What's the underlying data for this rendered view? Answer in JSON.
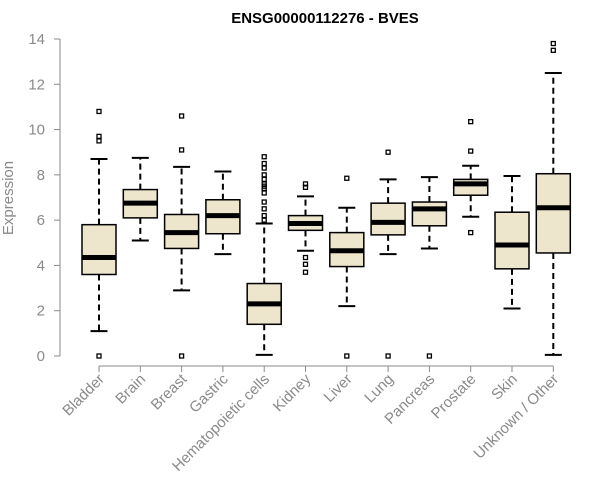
{
  "chart_data": {
    "type": "boxplot",
    "title": "ENSG00000112276 - BVES",
    "ylabel": "Expression",
    "xlabel": "",
    "ylim": [
      0,
      14
    ],
    "yticks": [
      0,
      2,
      4,
      6,
      8,
      10,
      12,
      14
    ],
    "grid": false,
    "box_fill": "#ede6cc",
    "categories": [
      "Bladder",
      "Brain",
      "Breast",
      "Gastric",
      "Hematopoietic cells",
      "Kidney",
      "Liver",
      "Lung",
      "Pancreas",
      "Prostate",
      "Skin",
      "Unknown / Other"
    ],
    "boxes": [
      {
        "whisker_low": 1.1,
        "q1": 3.6,
        "median": 4.35,
        "q3": 5.8,
        "whisker_high": 8.7,
        "outliers": [
          0,
          9.5,
          9.7,
          10.8
        ]
      },
      {
        "whisker_low": 5.1,
        "q1": 6.1,
        "median": 6.75,
        "q3": 7.35,
        "whisker_high": 8.75,
        "outliers": []
      },
      {
        "whisker_low": 2.9,
        "q1": 4.75,
        "median": 5.45,
        "q3": 6.25,
        "whisker_high": 8.35,
        "outliers": [
          0,
          9.1,
          10.6
        ]
      },
      {
        "whisker_low": 4.5,
        "q1": 5.4,
        "median": 6.2,
        "q3": 6.9,
        "whisker_high": 8.15,
        "outliers": []
      },
      {
        "whisker_low": 0.05,
        "q1": 1.4,
        "median": 2.3,
        "q3": 3.2,
        "whisker_high": 5.85,
        "outliers": [
          6.0,
          6.2,
          6.5,
          6.8,
          7.2,
          7.4,
          7.5,
          7.6,
          7.8,
          8.0,
          8.3,
          8.5,
          8.8
        ]
      },
      {
        "whisker_low": 4.65,
        "q1": 5.55,
        "median": 5.85,
        "q3": 6.2,
        "whisker_high": 7.05,
        "outliers": [
          3.7,
          4.05,
          4.35,
          7.45,
          7.6
        ]
      },
      {
        "whisker_low": 2.2,
        "q1": 3.95,
        "median": 4.65,
        "q3": 5.45,
        "whisker_high": 6.55,
        "outliers": [
          0,
          7.85
        ]
      },
      {
        "whisker_low": 4.5,
        "q1": 5.35,
        "median": 5.9,
        "q3": 6.75,
        "whisker_high": 7.8,
        "outliers": [
          0,
          9.0
        ]
      },
      {
        "whisker_low": 4.75,
        "q1": 5.75,
        "median": 6.5,
        "q3": 6.8,
        "whisker_high": 7.9,
        "outliers": [
          0
        ]
      },
      {
        "whisker_low": 6.15,
        "q1": 7.1,
        "median": 7.6,
        "q3": 7.8,
        "whisker_high": 8.4,
        "outliers": [
          5.45,
          9.05,
          10.35
        ]
      },
      {
        "whisker_low": 2.1,
        "q1": 3.85,
        "median": 4.9,
        "q3": 6.35,
        "whisker_high": 7.95,
        "outliers": []
      },
      {
        "whisker_low": 0.05,
        "q1": 4.55,
        "median": 6.55,
        "q3": 8.05,
        "whisker_high": 12.5,
        "outliers": [
          13.5,
          13.8
        ]
      }
    ]
  }
}
